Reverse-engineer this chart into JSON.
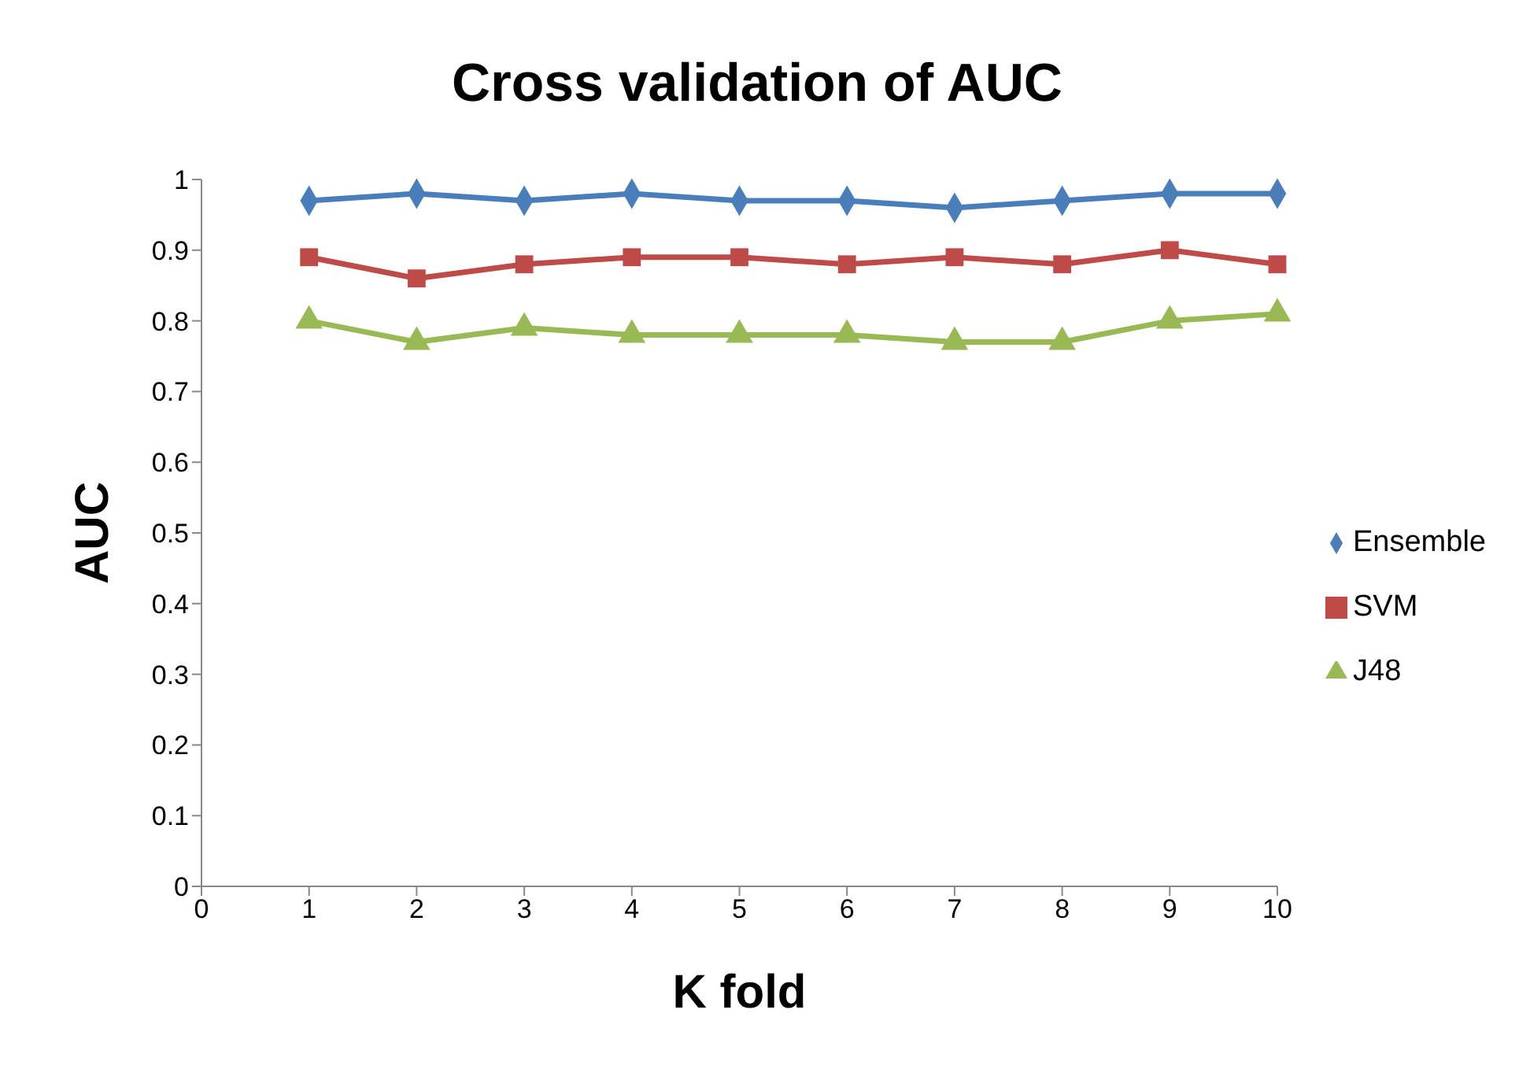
{
  "chart_data": {
    "type": "line",
    "title": "Cross validation of AUC",
    "xlabel": "K fold",
    "ylabel": "AUC",
    "x": [
      1,
      2,
      3,
      4,
      5,
      6,
      7,
      8,
      9,
      10
    ],
    "series": [
      {
        "name": "Ensemble",
        "color": "#4a7ebb",
        "marker": "diamond",
        "values": [
          0.97,
          0.98,
          0.97,
          0.98,
          0.97,
          0.97,
          0.96,
          0.97,
          0.98,
          0.98
        ]
      },
      {
        "name": "SVM",
        "color": "#be4b48",
        "marker": "square",
        "values": [
          0.89,
          0.86,
          0.88,
          0.89,
          0.89,
          0.88,
          0.89,
          0.88,
          0.9,
          0.88
        ]
      },
      {
        "name": "J48",
        "color": "#98b954",
        "marker": "triangle",
        "values": [
          0.8,
          0.77,
          0.79,
          0.78,
          0.78,
          0.78,
          0.77,
          0.77,
          0.8,
          0.81
        ]
      }
    ],
    "xlim": [
      0,
      10
    ],
    "xticks": [
      0,
      1,
      2,
      3,
      4,
      5,
      6,
      7,
      8,
      9,
      10
    ],
    "ylim": [
      0,
      1
    ],
    "yticks": [
      0,
      0.1,
      0.2,
      0.3,
      0.4,
      0.5,
      0.6,
      0.7,
      0.8,
      0.9,
      1
    ],
    "grid": false,
    "legend": "right",
    "line_style": "solid"
  }
}
